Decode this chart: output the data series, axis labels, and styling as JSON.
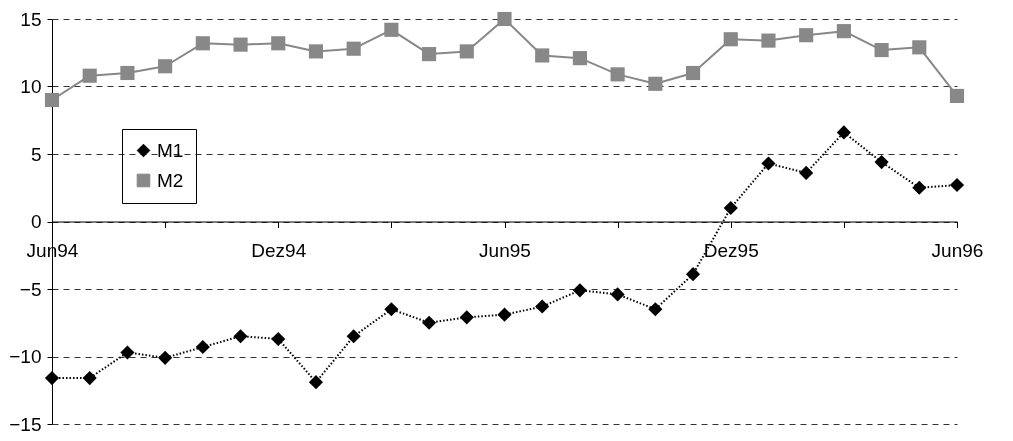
{
  "chart_data": {
    "type": "line",
    "categories": [
      "Jun94",
      null,
      null,
      null,
      null,
      null,
      "Dez94",
      null,
      null,
      null,
      null,
      null,
      "Jun95",
      null,
      null,
      null,
      null,
      null,
      "Dez95",
      null,
      null,
      null,
      null,
      null,
      "Jun96"
    ],
    "series": [
      {
        "name": "M1",
        "color": "#000000",
        "marker": "diamond",
        "line_style": "dotted",
        "values": [
          -11.6,
          -11.6,
          -9.7,
          -10.1,
          -9.3,
          -8.5,
          -8.7,
          -11.9,
          -8.5,
          -6.5,
          -7.5,
          -7.1,
          -6.9,
          -6.3,
          -5.1,
          -5.4,
          -6.5,
          -3.9,
          1.0,
          4.3,
          3.6,
          6.6,
          4.4,
          2.5,
          2.7
        ]
      },
      {
        "name": "M2",
        "color": "#888888",
        "marker": "square",
        "line_style": "solid",
        "values": [
          9.0,
          10.8,
          11.0,
          11.5,
          13.2,
          13.1,
          13.2,
          12.6,
          12.8,
          14.2,
          12.4,
          12.6,
          15.0,
          12.3,
          12.1,
          10.9,
          10.2,
          11.0,
          13.5,
          13.4,
          13.8,
          14.1,
          12.7,
          12.9,
          9.3
        ]
      }
    ],
    "ylim": [
      -15,
      15
    ],
    "yticks": [
      -15,
      -10,
      -5,
      0,
      5,
      10,
      15
    ],
    "grid": "y",
    "legend": "top left"
  }
}
